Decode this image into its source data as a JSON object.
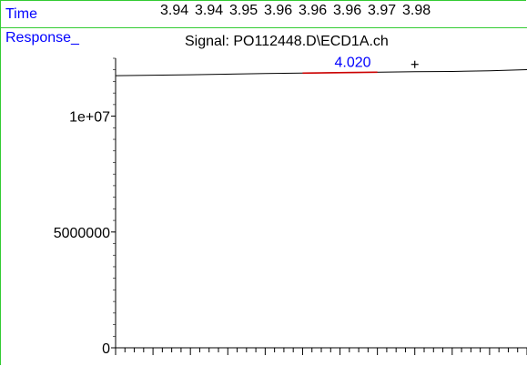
{
  "header": {
    "time_label": "Time",
    "response_label": "Response_",
    "time_ticks": [
      "3.94",
      "3.94",
      "3.95",
      "3.96",
      "3.96",
      "3.96",
      "3.97",
      "3.98"
    ]
  },
  "chart_data": {
    "type": "line",
    "title": "Signal: PO112448.D\\ECD1A.ch",
    "xlabel": "",
    "ylabel": "",
    "xlim": [
      3.93,
      4.04
    ],
    "ylim": [
      0,
      12500000
    ],
    "ytick_values": [
      0,
      5000000,
      10000000
    ],
    "ytick_labels": [
      "0",
      "5000000",
      "1e+07"
    ],
    "series": [
      {
        "x": [
          3.93,
          3.95,
          3.97,
          3.99,
          4.01,
          4.02,
          4.03,
          4.04
        ],
        "y": [
          11750000,
          11790000,
          11840000,
          11880000,
          11920000,
          11930000,
          11960000,
          12010000
        ],
        "color": "#000000"
      }
    ],
    "peak": {
      "label": "4.020",
      "x_start": 3.98,
      "x_end": 4.0,
      "color": "#cc0000",
      "label_color": "#0000ff"
    },
    "marker": {
      "symbol": "+",
      "x": 4.01,
      "y": 12000000
    },
    "grid": false
  },
  "colors": {
    "frame": "#33cc33",
    "label_blue": "#0000ff",
    "trace": "#000000",
    "peak": "#cc0000"
  }
}
